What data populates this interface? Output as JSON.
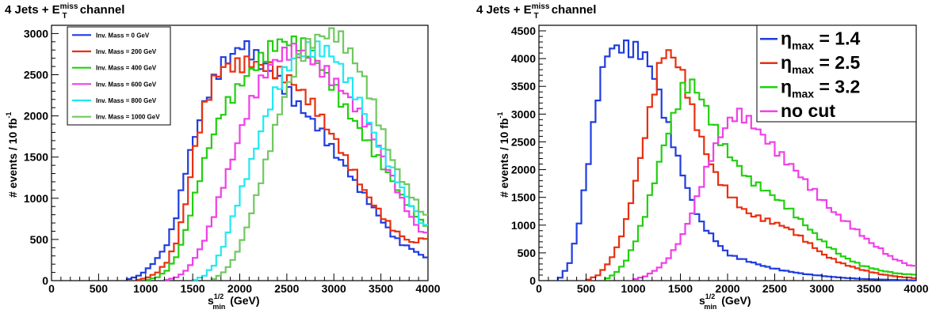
{
  "chart_data": [
    {
      "type": "line",
      "title": "4 Jets + E",
      "title_sup": "miss",
      "title_sub": "T",
      "title_suffix": " channel",
      "xlabel": "s",
      "xlabel_sup": "1/2",
      "xlabel_sub": "min",
      "xlabel_suffix": " (GeV)",
      "ylabel": "# events / 10 fb",
      "ylabel_sup": "-1",
      "xlim": [
        0,
        4000
      ],
      "ylim": [
        0,
        3100
      ],
      "xticks": [
        0,
        500,
        1000,
        1500,
        2000,
        2500,
        3000,
        3500,
        4000
      ],
      "yticks": [
        0,
        500,
        1000,
        1500,
        2000,
        2500,
        3000
      ],
      "legend": "top-left",
      "grid": false,
      "series": [
        {
          "name": "Inv. Mass = 0 GeV",
          "color": "#1f3ce0",
          "x": [
            800,
            900,
            1000,
            1100,
            1200,
            1300,
            1400,
            1500,
            1600,
            1700,
            1800,
            1900,
            2000,
            2100,
            2200,
            2300,
            2400,
            2500,
            2600,
            2700,
            2800,
            2900,
            3000,
            3100,
            3200,
            3300,
            3400,
            3500,
            3600,
            3700,
            3800,
            3900,
            4000
          ],
          "y": [
            20,
            60,
            150,
            280,
            450,
            800,
            1350,
            1750,
            2100,
            2350,
            2550,
            2650,
            2800,
            2750,
            2650,
            2600,
            2500,
            2350,
            2200,
            2050,
            1900,
            1700,
            1500,
            1350,
            1150,
            1000,
            850,
            700,
            550,
            450,
            400,
            320,
            280
          ]
        },
        {
          "name": "Inv. Mass = 200 GeV",
          "color": "#e83010",
          "x": [
            900,
            1000,
            1100,
            1200,
            1300,
            1400,
            1500,
            1600,
            1700,
            1800,
            1900,
            2000,
            2100,
            2200,
            2300,
            2400,
            2500,
            2600,
            2700,
            2800,
            2900,
            3000,
            3100,
            3200,
            3300,
            3400,
            3500,
            3600,
            3700,
            3800,
            3900,
            4000
          ],
          "y": [
            10,
            40,
            100,
            220,
            450,
            900,
            1550,
            2050,
            2400,
            2600,
            2650,
            2700,
            2750,
            2700,
            2650,
            2550,
            2450,
            2300,
            2150,
            2000,
            1800,
            1650,
            1450,
            1300,
            1100,
            950,
            800,
            650,
            560,
            470,
            500,
            550
          ]
        },
        {
          "name": "Inv. Mass = 400 GeV",
          "color": "#22d010",
          "x": [
            1000,
            1100,
            1200,
            1300,
            1400,
            1500,
            1600,
            1700,
            1800,
            1900,
            2000,
            2100,
            2200,
            2300,
            2400,
            2500,
            2600,
            2700,
            2800,
            2900,
            3000,
            3100,
            3200,
            3300,
            3400,
            3500,
            3600,
            3700,
            3800,
            3900,
            4000
          ],
          "y": [
            10,
            40,
            120,
            280,
            600,
            1050,
            1500,
            1850,
            2150,
            2300,
            2450,
            2550,
            2650,
            2750,
            2800,
            2800,
            2800,
            2750,
            2650,
            2500,
            2350,
            2150,
            2000,
            1800,
            1600,
            1400,
            1200,
            1000,
            850,
            700,
            600
          ]
        },
        {
          "name": "Inv. Mass = 600 GeV",
          "color": "#f040e8",
          "x": [
            1200,
            1300,
            1400,
            1500,
            1600,
            1700,
            1800,
            1900,
            2000,
            2100,
            2200,
            2300,
            2400,
            2500,
            2600,
            2700,
            2800,
            2900,
            3000,
            3100,
            3200,
            3300,
            3400,
            3500,
            3600,
            3700,
            3800,
            3900,
            4000
          ],
          "y": [
            10,
            40,
            120,
            280,
            500,
            800,
            1150,
            1450,
            1800,
            2100,
            2350,
            2550,
            2700,
            2800,
            2850,
            2800,
            2700,
            2600,
            2450,
            2300,
            2100,
            1900,
            1700,
            1450,
            1200,
            950,
            750,
            600,
            550
          ]
        },
        {
          "name": "Inv. Mass = 800 GeV",
          "color": "#22e8f0",
          "x": [
            1500,
            1600,
            1700,
            1800,
            1900,
            2000,
            2100,
            2200,
            2300,
            2400,
            2500,
            2600,
            2700,
            2800,
            2900,
            3000,
            3100,
            3200,
            3300,
            3400,
            3500,
            3600,
            3700,
            3800,
            3900,
            4000
          ],
          "y": [
            10,
            60,
            180,
            400,
            750,
            1100,
            1450,
            1850,
            2200,
            2500,
            2700,
            2800,
            2850,
            2800,
            2750,
            2600,
            2400,
            2200,
            2000,
            1750,
            1550,
            1350,
            1150,
            950,
            750,
            600
          ]
        },
        {
          "name": "Inv. Mass = 1000 GeV",
          "color": "#70c860",
          "x": [
            1700,
            1800,
            1900,
            2000,
            2100,
            2200,
            2300,
            2400,
            2500,
            2600,
            2700,
            2800,
            2900,
            3000,
            3100,
            3200,
            3300,
            3400,
            3500,
            3600,
            3700,
            3800,
            3900,
            4000
          ],
          "y": [
            20,
            100,
            250,
            500,
            850,
            1250,
            1650,
            2050,
            2350,
            2600,
            2750,
            2850,
            2900,
            2950,
            2850,
            2700,
            2500,
            2200,
            1850,
            1500,
            1250,
            1050,
            850,
            700
          ]
        }
      ]
    },
    {
      "type": "line",
      "title": "4 Jets + E",
      "title_sup": "miss",
      "title_sub": "T",
      "title_suffix": " channel",
      "xlabel": "s",
      "xlabel_sup": "1/2",
      "xlabel_sub": "min",
      "xlabel_suffix": " (GeV)",
      "ylabel": "# events / 10 fb",
      "ylabel_sup": "-1",
      "xlim": [
        0,
        4000
      ],
      "ylim": [
        0,
        4600
      ],
      "xticks": [
        0,
        500,
        1000,
        1500,
        2000,
        2500,
        3000,
        3500,
        4000
      ],
      "yticks": [
        0,
        500,
        1000,
        1500,
        2000,
        2500,
        3000,
        3500,
        4000,
        4500
      ],
      "legend": "top-right",
      "grid": false,
      "series": [
        {
          "name": "η",
          "name_sub": "max",
          "name_suffix": " = 1.4",
          "color": "#1f3ce0",
          "x": [
            200,
            300,
            400,
            500,
            600,
            700,
            800,
            900,
            1000,
            1100,
            1200,
            1300,
            1400,
            1500,
            1600,
            1700,
            1800,
            1900,
            2000,
            2200,
            2400,
            2600,
            2800,
            3000,
            3200,
            3400,
            3600,
            3800,
            4000
          ],
          "y": [
            50,
            300,
            1000,
            2100,
            3300,
            4100,
            4250,
            4300,
            4300,
            4200,
            3800,
            3100,
            2500,
            1900,
            1400,
            1000,
            800,
            600,
            450,
            350,
            250,
            180,
            120,
            80,
            50,
            30,
            20,
            10,
            5
          ]
        },
        {
          "name": "η",
          "name_sub": "max",
          "name_suffix": " = 2.5",
          "color": "#e83010",
          "x": [
            500,
            600,
            700,
            800,
            900,
            1000,
            1100,
            1200,
            1300,
            1400,
            1500,
            1600,
            1700,
            1800,
            1900,
            2000,
            2100,
            2200,
            2400,
            2600,
            2800,
            3000,
            3200,
            3400,
            3600,
            3800,
            4000
          ],
          "y": [
            20,
            100,
            300,
            600,
            1100,
            1800,
            2600,
            3400,
            4000,
            3900,
            3600,
            3000,
            2500,
            2100,
            1800,
            1600,
            1400,
            1250,
            1100,
            950,
            700,
            450,
            300,
            200,
            120,
            70,
            40
          ]
        },
        {
          "name": "η",
          "name_sub": "max",
          "name_suffix": " = 3.2",
          "color": "#22d010",
          "x": [
            700,
            800,
            900,
            1000,
            1100,
            1200,
            1300,
            1400,
            1500,
            1600,
            1700,
            1800,
            1900,
            2000,
            2100,
            2200,
            2400,
            2600,
            2800,
            3000,
            3200,
            3400,
            3600,
            3800,
            4000
          ],
          "y": [
            40,
            150,
            350,
            700,
            1150,
            1750,
            2400,
            2950,
            3500,
            3650,
            3400,
            3000,
            2600,
            2300,
            2050,
            1800,
            1550,
            1300,
            1000,
            700,
            450,
            280,
            180,
            120,
            100
          ]
        },
        {
          "name": "no cut",
          "color": "#f040e8",
          "x": [
            1000,
            1100,
            1200,
            1300,
            1400,
            1500,
            1600,
            1700,
            1800,
            1900,
            2000,
            2100,
            2200,
            2300,
            2400,
            2500,
            2600,
            2700,
            2800,
            2900,
            3000,
            3100,
            3200,
            3300,
            3400,
            3500,
            3600,
            3700,
            3800,
            3900,
            4000
          ],
          "y": [
            30,
            80,
            180,
            320,
            550,
            850,
            1250,
            1750,
            2200,
            2550,
            2800,
            2900,
            2800,
            2650,
            2500,
            2350,
            2200,
            2050,
            1850,
            1650,
            1450,
            1250,
            1100,
            950,
            800,
            650,
            550,
            420,
            350,
            280,
            250
          ]
        }
      ]
    }
  ]
}
